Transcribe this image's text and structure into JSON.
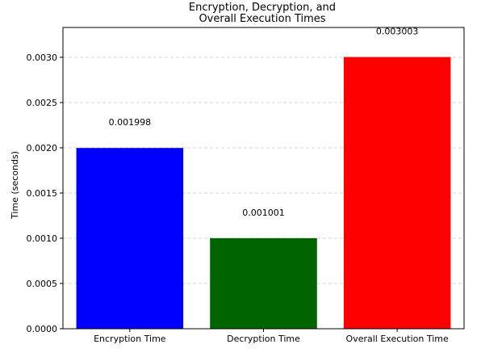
{
  "chart_data": {
    "type": "bar",
    "title_lines": [
      "Encryption, Decryption, and",
      "Overall Execution Times"
    ],
    "xlabel": "",
    "ylabel": "Time (seconds)",
    "categories": [
      "Encryption Time",
      "Decryption Time",
      "Overall Execution Time"
    ],
    "values": [
      0.001998,
      0.001001,
      0.003003
    ],
    "data_labels": [
      "0.001998",
      "0.001001",
      "0.003003"
    ],
    "colors": [
      "#0000ff",
      "#006400",
      "#ff0000"
    ],
    "ylim": [
      0,
      0.00333
    ],
    "yticks": [
      0,
      0.0005,
      0.001,
      0.0015,
      0.002,
      0.0025,
      0.003
    ],
    "ytick_labels": [
      "0.0000",
      "0.0005",
      "0.0010",
      "0.0015",
      "0.0020",
      "0.0025",
      "0.0030"
    ],
    "grid": true,
    "grid_axis": "y",
    "grid_style": "dashed"
  }
}
